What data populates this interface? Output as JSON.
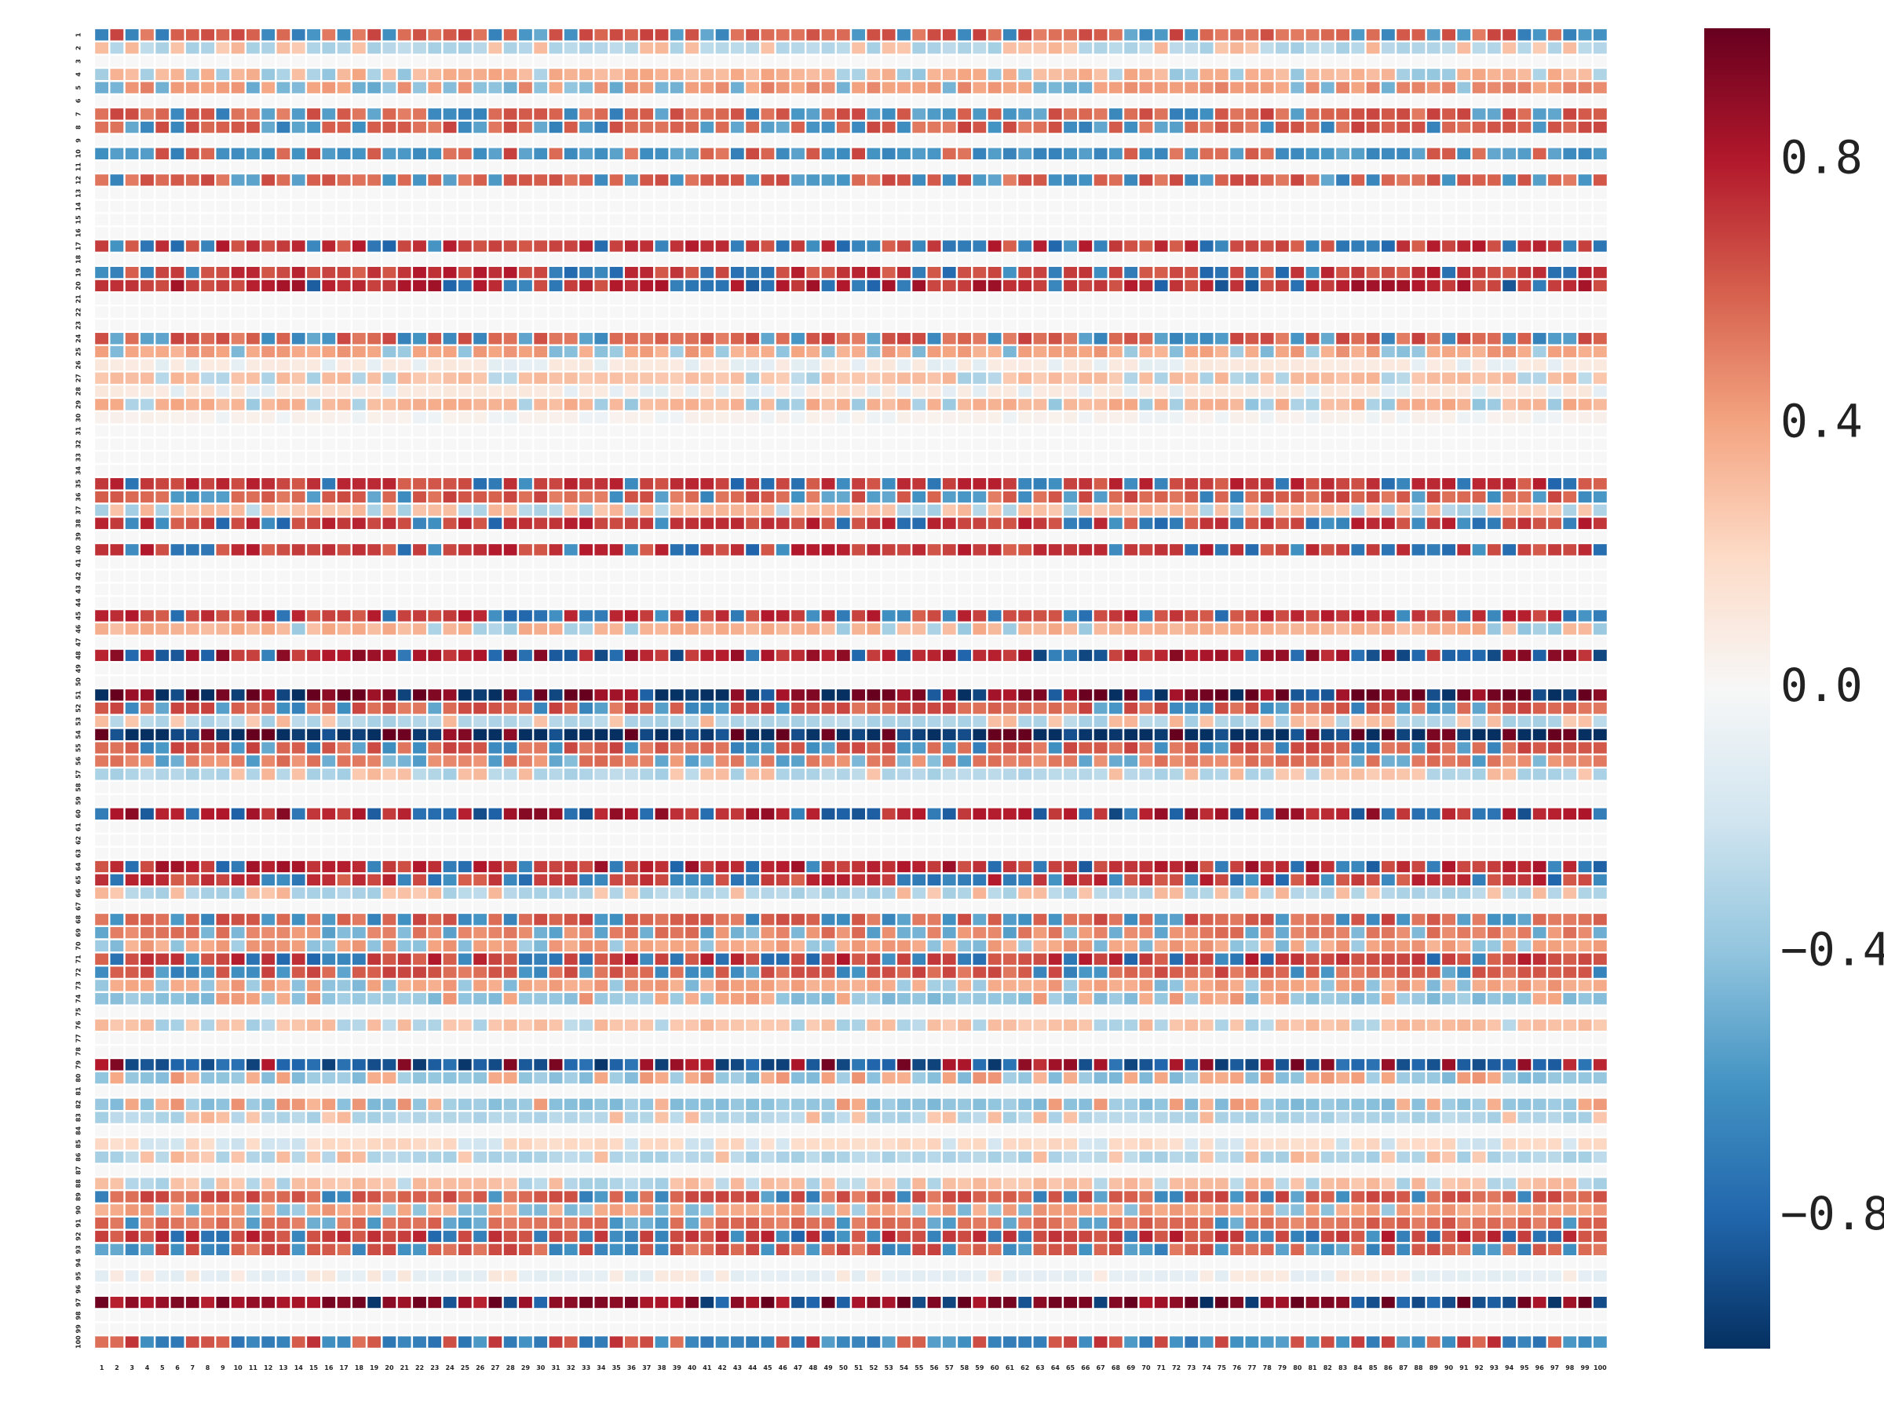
{
  "chart_data": {
    "type": "heatmap",
    "title": "",
    "xlabel": "",
    "ylabel": "",
    "n_rows": 100,
    "n_cols": 100,
    "x_ticks": [
      "1",
      "2",
      "3",
      "4",
      "5",
      "6",
      "7",
      "8",
      "9",
      "10",
      "11",
      "12",
      "13",
      "14",
      "15",
      "16",
      "17",
      "18",
      "19",
      "20",
      "21",
      "22",
      "23",
      "24",
      "25",
      "26",
      "27",
      "28",
      "29",
      "30",
      "31",
      "32",
      "33",
      "34",
      "35",
      "36",
      "37",
      "38",
      "39",
      "40",
      "41",
      "42",
      "43",
      "44",
      "45",
      "46",
      "47",
      "48",
      "49",
      "50",
      "51",
      "52",
      "53",
      "54",
      "55",
      "56",
      "57",
      "58",
      "59",
      "60",
      "61",
      "62",
      "63",
      "64",
      "65",
      "66",
      "67",
      "68",
      "69",
      "70",
      "71",
      "72",
      "73",
      "74",
      "75",
      "76",
      "77",
      "78",
      "79",
      "80",
      "81",
      "82",
      "83",
      "84",
      "85",
      "86",
      "87",
      "88",
      "89",
      "90",
      "91",
      "92",
      "93",
      "94",
      "95",
      "96",
      "97",
      "98",
      "99",
      "100"
    ],
    "y_ticks": [
      "1",
      "2",
      "3",
      "4",
      "5",
      "6",
      "7",
      "8",
      "9",
      "10",
      "11",
      "12",
      "13",
      "14",
      "15",
      "16",
      "17",
      "18",
      "19",
      "20",
      "21",
      "22",
      "23",
      "24",
      "25",
      "26",
      "27",
      "28",
      "29",
      "30",
      "31",
      "32",
      "33",
      "34",
      "35",
      "36",
      "37",
      "38",
      "39",
      "40",
      "41",
      "42",
      "43",
      "44",
      "45",
      "46",
      "47",
      "48",
      "49",
      "50",
      "51",
      "52",
      "53",
      "54",
      "55",
      "56",
      "57",
      "58",
      "59",
      "60",
      "61",
      "62",
      "63",
      "64",
      "65",
      "66",
      "67",
      "68",
      "69",
      "70",
      "71",
      "72",
      "73",
      "74",
      "75",
      "76",
      "77",
      "78",
      "79",
      "80",
      "81",
      "82",
      "83",
      "84",
      "85",
      "86",
      "87",
      "88",
      "89",
      "90",
      "91",
      "92",
      "93",
      "94",
      "95",
      "96",
      "97",
      "98",
      "99",
      "100"
    ],
    "zero_rows": [
      3,
      6,
      9,
      11,
      13,
      14,
      15,
      16,
      18,
      21,
      22,
      23,
      31,
      32,
      33,
      34,
      39,
      41,
      42,
      43,
      44,
      47,
      49,
      50,
      58,
      59,
      61,
      62,
      63,
      67,
      75,
      77,
      78,
      81,
      84,
      87,
      94,
      96,
      98,
      99
    ],
    "row_profiles": {
      "1": 0.6,
      "2": -0.3,
      "4": 0.35,
      "5": 0.45,
      "7": 0.6,
      "8": 0.6,
      "10": -0.6,
      "12": 0.6,
      "17": 0.7,
      "19": 0.7,
      "20": 0.75,
      "24": 0.6,
      "25": 0.4,
      "26": 0.1,
      "27": 0.3,
      "28": 0.1,
      "29": 0.35,
      "30": 0.05,
      "35": 0.7,
      "36": 0.6,
      "37": 0.3,
      "38": 0.7,
      "40": 0.7,
      "45": 0.7,
      "46": 0.35,
      "48": 0.8,
      "51": 0.95,
      "52": 0.6,
      "53": -0.3,
      "54": -1.0,
      "55": 0.6,
      "56": 0.5,
      "57": -0.3,
      "60": 0.8,
      "64": 0.75,
      "65": 0.7,
      "66": -0.3,
      "68": 0.6,
      "69": 0.5,
      "70": 0.4,
      "71": 0.7,
      "72": 0.6,
      "73": 0.4,
      "74": -0.4,
      "76": 0.3,
      "79": -0.85,
      "80": -0.4,
      "82": -0.4,
      "83": -0.3,
      "85": 0.2,
      "86": -0.3,
      "88": 0.3,
      "89": 0.6,
      "90": 0.4,
      "91": 0.55,
      "92": 0.7,
      "93": 0.6,
      "95": -0.1,
      "97": 0.9,
      "100": -0.65
    },
    "sign_flip_probability": 0.3,
    "seed": 7,
    "colormap": "RdBu_r",
    "vmin": -1.0,
    "vmax": 1.0,
    "colorbar": {
      "ticks": [
        0.8,
        0.4,
        0.0,
        -0.4,
        -0.8
      ],
      "labels": [
        "0.8",
        "0.4",
        "0.0",
        "−0.4",
        "−0.8"
      ]
    },
    "colors": {
      "dark_red": "#67001f",
      "red": "#b2182b",
      "mid_red": "#d6604d",
      "light_red": "#f4a582",
      "pale_red": "#fddbc7",
      "neutral": "#f7f7f7",
      "pale_blue": "#d1e5f0",
      "light_blue": "#92c5de",
      "mid_blue": "#4393c3",
      "blue": "#2166ac",
      "dark_blue": "#053061",
      "grid": "#ffffff"
    }
  }
}
